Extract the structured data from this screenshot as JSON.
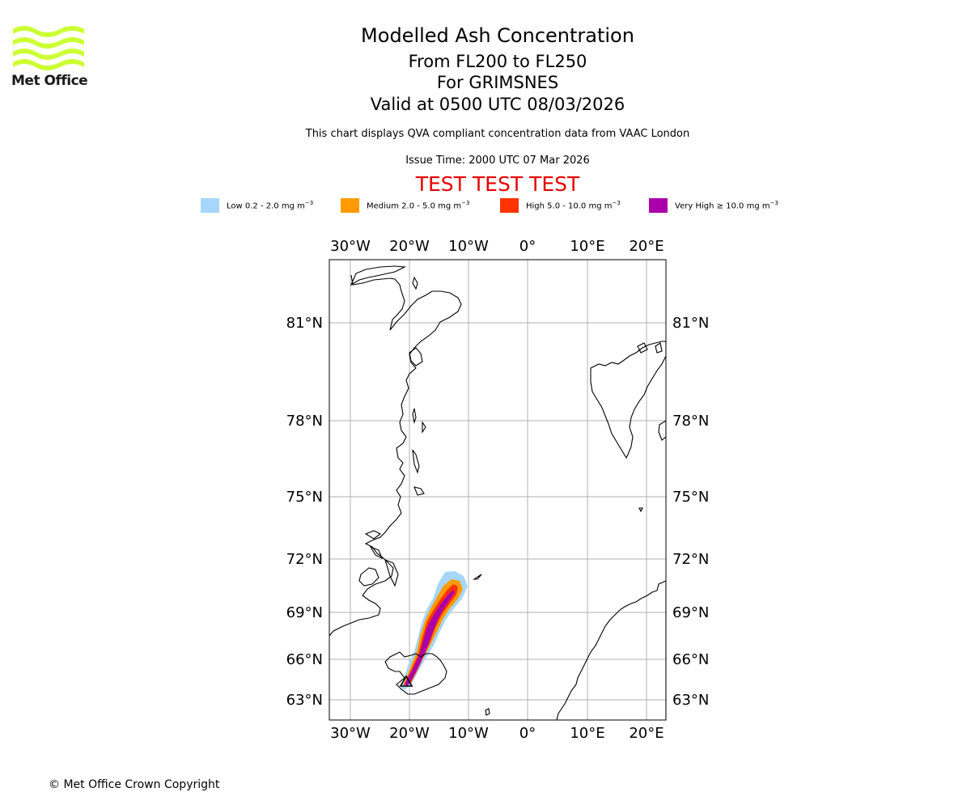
{
  "logo": {
    "text": "Met Office",
    "color": "#ccff33"
  },
  "titles": {
    "main": "Modelled Ash Concentration",
    "levels": "From FL200 to FL250",
    "volcano": "For GRIMSNES",
    "valid": "Valid at 0500 UTC 08/03/2026"
  },
  "description": "This chart displays QVA compliant concentration data from VAAC London",
  "issue_time": "Issue Time: 2000 UTC 07 Mar 2026",
  "test_banner": "TEST TEST TEST",
  "legend": [
    {
      "label": "Low 0.2 - 2.0 mg m",
      "color": "#a6d6fa"
    },
    {
      "label": "Medium 2.0 - 5.0 mg m",
      "color": "#ff9a00"
    },
    {
      "label": "High 5.0 - 10.0 mg m",
      "color": "#ff3300"
    },
    {
      "label": "Very High ≥ 10.0 mg m",
      "color": "#aa00aa"
    }
  ],
  "legend_unit_exponent": "−3",
  "map": {
    "lon_labels": [
      "30°W",
      "20°W",
      "10°W",
      "0°",
      "10°E",
      "20°E"
    ],
    "lat_labels": [
      "81°N",
      "78°N",
      "75°N",
      "72°N",
      "69°N",
      "66°N",
      "63°N"
    ],
    "volcano_marker": "triangle"
  },
  "copyright": "© Met Office Crown Copyright"
}
